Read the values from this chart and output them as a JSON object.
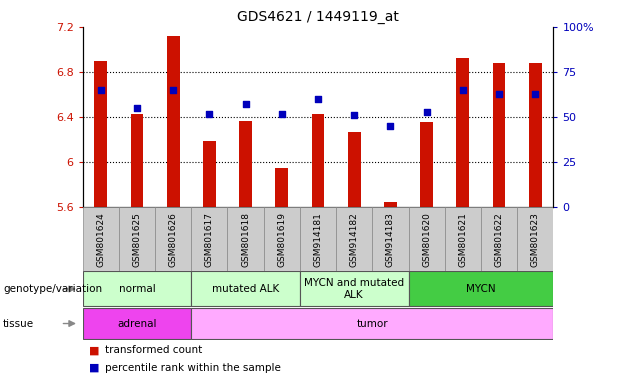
{
  "title": "GDS4621 / 1449119_at",
  "samples": [
    "GSM801624",
    "GSM801625",
    "GSM801626",
    "GSM801617",
    "GSM801618",
    "GSM801619",
    "GSM914181",
    "GSM914182",
    "GSM914183",
    "GSM801620",
    "GSM801621",
    "GSM801622",
    "GSM801623"
  ],
  "transformed_count": [
    6.9,
    6.43,
    7.12,
    6.19,
    6.37,
    5.95,
    6.43,
    6.27,
    5.65,
    6.36,
    6.92,
    6.88,
    6.88
  ],
  "percentile_rank": [
    65,
    55,
    65,
    52,
    57,
    52,
    60,
    51,
    45,
    53,
    65,
    63,
    63
  ],
  "ylim_left": [
    5.6,
    7.2
  ],
  "ylim_right": [
    0,
    100
  ],
  "yticks_left": [
    5.6,
    6.0,
    6.4,
    6.8,
    7.2
  ],
  "ytick_labels_left": [
    "5.6",
    "6",
    "6.4",
    "6.8",
    "7.2"
  ],
  "yticks_right": [
    0,
    25,
    50,
    75,
    100
  ],
  "ytick_labels_right": [
    "0",
    "25",
    "50",
    "75",
    "100%"
  ],
  "grid_values": [
    6.0,
    6.4,
    6.8
  ],
  "genotype_groups": [
    {
      "label": "normal",
      "start": 0,
      "end": 3,
      "color": "#ccffcc"
    },
    {
      "label": "mutated ALK",
      "start": 3,
      "end": 6,
      "color": "#ccffcc"
    },
    {
      "label": "MYCN and mutated\nALK",
      "start": 6,
      "end": 9,
      "color": "#ccffcc"
    },
    {
      "label": "MYCN",
      "start": 9,
      "end": 13,
      "color": "#44cc44"
    }
  ],
  "tissue_groups": [
    {
      "label": "adrenal",
      "start": 0,
      "end": 3,
      "color": "#ee44ee"
    },
    {
      "label": "tumor",
      "start": 3,
      "end": 13,
      "color": "#ffaaff"
    }
  ],
  "bar_color": "#CC1100",
  "dot_color": "#0000BB",
  "bar_width": 0.35,
  "genotype_label": "genotype/variation",
  "tissue_label": "tissue",
  "legend_items": [
    {
      "label": "transformed count",
      "color": "#CC1100"
    },
    {
      "label": "percentile rank within the sample",
      "color": "#0000BB"
    }
  ],
  "tick_bg_color": "#cccccc"
}
